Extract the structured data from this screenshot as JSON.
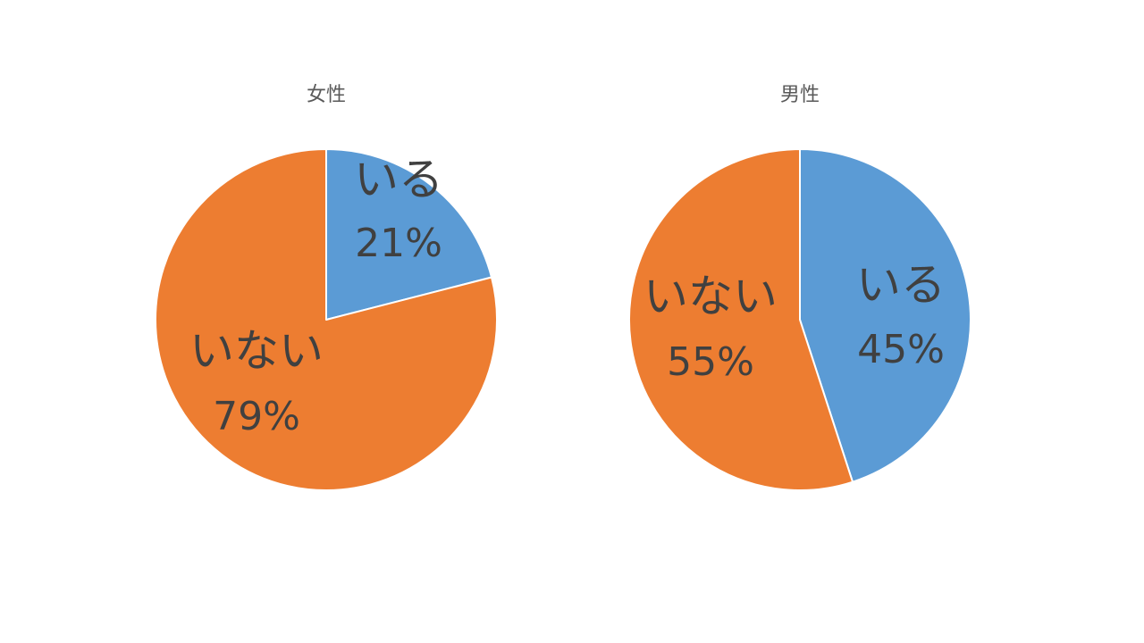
{
  "chart_data": [
    {
      "type": "pie",
      "title": "女性",
      "categories": [
        "いる",
        "いない"
      ],
      "values": [
        21,
        79
      ],
      "data_labels": [
        {
          "name": "いる",
          "percent": "21%"
        },
        {
          "name": "いない",
          "percent": "79%"
        }
      ],
      "colors": [
        "#5B9BD5",
        "#ED7D31"
      ],
      "legend": "none"
    },
    {
      "type": "pie",
      "title": "男性",
      "categories": [
        "いる",
        "いない"
      ],
      "values": [
        45,
        55
      ],
      "data_labels": [
        {
          "name": "いる",
          "percent": "45%"
        },
        {
          "name": "いない",
          "percent": "55%"
        }
      ],
      "colors": [
        "#5B9BD5",
        "#ED7D31"
      ],
      "legend": "none"
    }
  ]
}
